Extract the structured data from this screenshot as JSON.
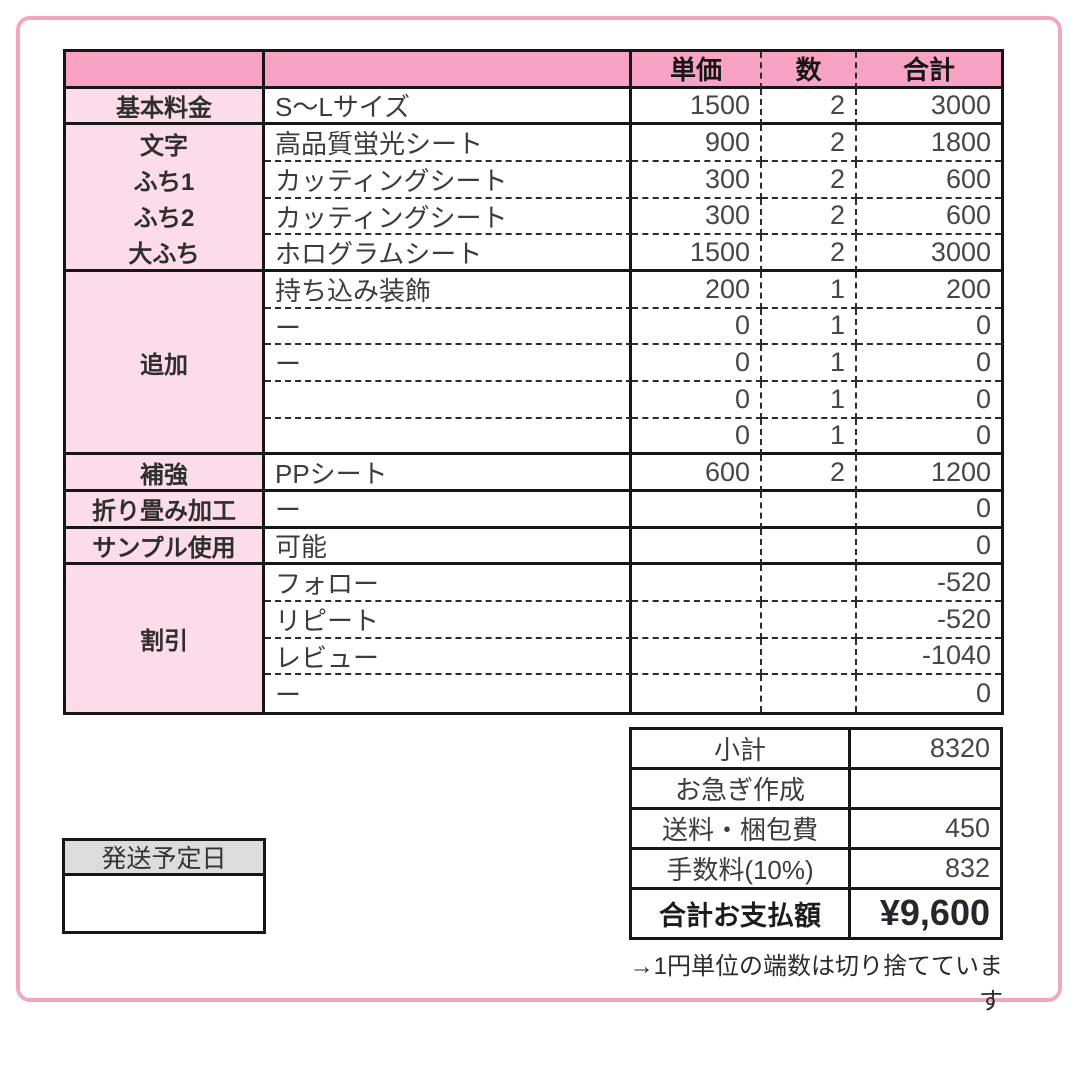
{
  "colors": {
    "frame_pink": "#f0a9bc",
    "header_pink": "#f8a3c3",
    "row_label_pink": "#fbdce8",
    "ship_header_gray": "#dcdcdc",
    "line_black": "#161616"
  },
  "pricing_table": {
    "headers": {
      "unit_price": "単価",
      "qty": "数",
      "total": "合計"
    },
    "groups": [
      {
        "label": "基本料金",
        "rows": [
          {
            "desc": "S〜Lサイズ",
            "unit": "1500",
            "qty": "2",
            "total": "3000"
          }
        ]
      },
      {
        "labels": [
          "文字",
          "ふち1",
          "ふち2",
          "大ふち"
        ],
        "rows": [
          {
            "desc": "高品質蛍光シート",
            "unit": "900",
            "qty": "2",
            "total": "1800"
          },
          {
            "desc": "カッティングシート",
            "unit": "300",
            "qty": "2",
            "total": "600"
          },
          {
            "desc": "カッティングシート",
            "unit": "300",
            "qty": "2",
            "total": "600"
          },
          {
            "desc": "ホログラムシート",
            "unit": "1500",
            "qty": "2",
            "total": "3000"
          }
        ]
      },
      {
        "label": "追加",
        "rows": [
          {
            "desc": "持ち込み装飾",
            "unit": "200",
            "qty": "1",
            "total": "200"
          },
          {
            "desc": "ー",
            "unit": "0",
            "qty": "1",
            "total": "0"
          },
          {
            "desc": "ー",
            "unit": "0",
            "qty": "1",
            "total": "0"
          },
          {
            "desc": "",
            "unit": "0",
            "qty": "1",
            "total": "0"
          },
          {
            "desc": "",
            "unit": "0",
            "qty": "1",
            "total": "0"
          }
        ]
      },
      {
        "label": "補強",
        "rows": [
          {
            "desc": "PPシート",
            "unit": "600",
            "qty": "2",
            "total": "1200"
          }
        ]
      },
      {
        "label": "折り畳み加工",
        "rows": [
          {
            "desc": "ー",
            "unit": "",
            "qty": "",
            "total": "0"
          }
        ]
      },
      {
        "label": "サンプル使用",
        "rows": [
          {
            "desc": "可能",
            "unit": "",
            "qty": "",
            "total": "0"
          }
        ]
      },
      {
        "label": "割引",
        "rows": [
          {
            "desc": "フォロー",
            "unit": "",
            "qty": "",
            "total": "-520"
          },
          {
            "desc": "リピート",
            "unit": "",
            "qty": "",
            "total": "-520"
          },
          {
            "desc": "レビュー",
            "unit": "",
            "qty": "",
            "total": "-1040"
          },
          {
            "desc": "ー",
            "unit": "",
            "qty": "",
            "total": "0"
          }
        ]
      }
    ]
  },
  "summary_table": {
    "rows": [
      {
        "label": "小計",
        "value": "8320"
      },
      {
        "label": "お急ぎ作成",
        "value": ""
      },
      {
        "label": "送料・梱包費",
        "value": "450"
      },
      {
        "label": "手数料(10%)",
        "value": "832"
      },
      {
        "label": "合計お支払額",
        "value": "¥9,600"
      }
    ]
  },
  "note": "→1円単位の端数は切り捨てています",
  "shipping_box": {
    "label": "発送予定日",
    "value": ""
  }
}
